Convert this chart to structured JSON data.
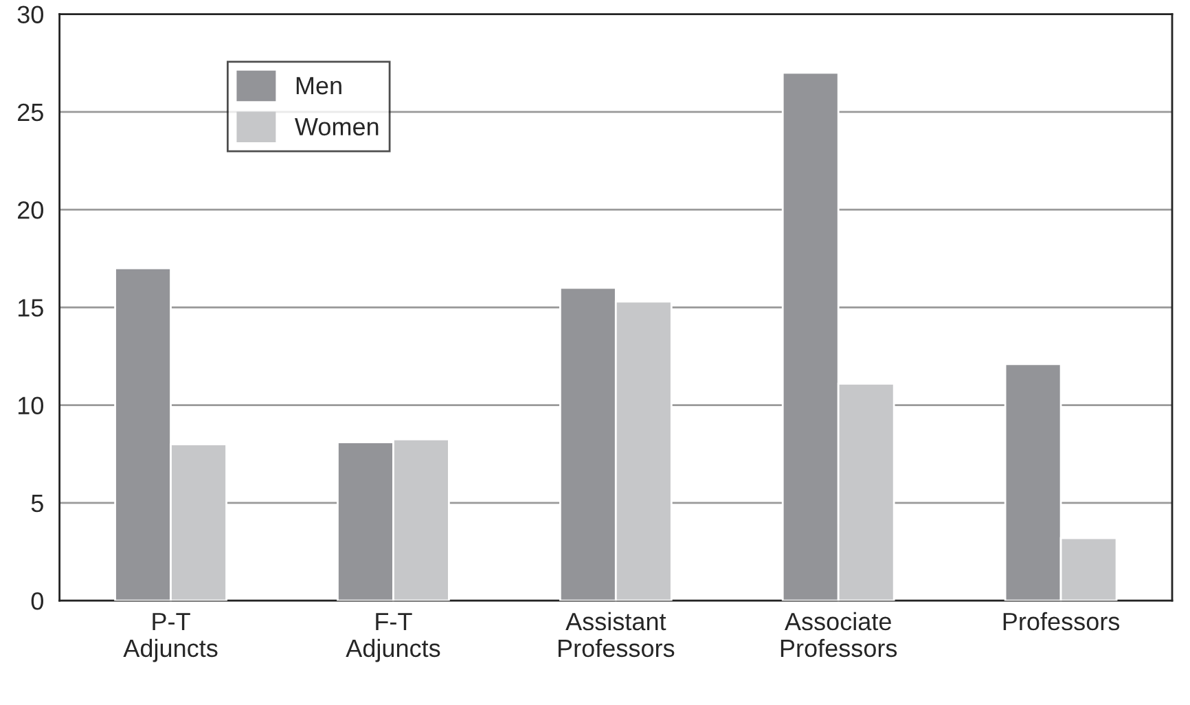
{
  "chart_data": {
    "type": "bar",
    "categories": [
      "P-T\nAdjuncts",
      "F-T\nAdjuncts",
      "Assistant\nProfessors",
      "Associate\nProfessors",
      "Professors"
    ],
    "series": [
      {
        "name": "Men",
        "color": "#939498",
        "values": [
          17,
          8.1,
          16,
          27,
          12.1
        ]
      },
      {
        "name": "Women",
        "color": "#c6c7c9",
        "values": [
          8,
          8.25,
          15.3,
          11.1,
          3.2
        ]
      }
    ],
    "ylim": [
      0,
      30
    ],
    "yticks": [
      0,
      5,
      10,
      15,
      20,
      25,
      30
    ],
    "grid": "y",
    "legend": "top left"
  }
}
